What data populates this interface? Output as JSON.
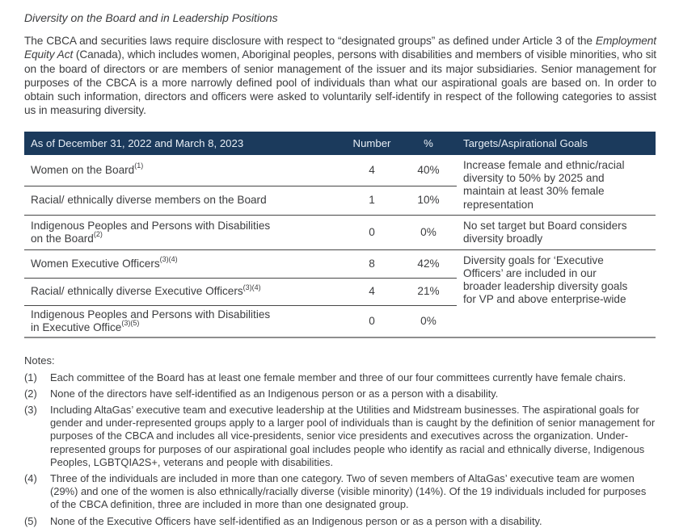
{
  "title": "Diversity on the Board and in Leadership Positions",
  "intro": {
    "part1": "The CBCA and securities laws require disclosure with respect to “designated groups” as defined under Article 3 of the ",
    "italic": "Employment Equity Act",
    "part2": " (Canada), which includes women, Aboriginal peoples, persons with disabilities and members of visible minorities, who sit on the board of directors or are members of senior management of the issuer and its major subsidiaries. Senior management for purposes of the CBCA is a more narrowly defined pool of individuals than what our aspirational goals are based on. In order to obtain such information, directors and officers were asked to voluntarily self-identify in respect of the following categories to assist us in measuring diversity."
  },
  "table": {
    "header": {
      "as_of": "As of December 31, 2022 and March 8, 2023",
      "number": "Number",
      "pct": "%",
      "targets": "Targets/Aspirational Goals"
    },
    "rows": [
      {
        "label": "Women on the Board",
        "sup": "(1)",
        "number": "4",
        "pct": "40%"
      },
      {
        "label": "Racial/ ethnically diverse members on the Board",
        "sup": "",
        "number": "1",
        "pct": "10%"
      },
      {
        "label": "Indigenous Peoples and Persons with Disabilities\non the Board",
        "sup": "(2)",
        "number": "0",
        "pct": "0%"
      },
      {
        "label": "Women Executive Officers",
        "sup": "(3)(4)",
        "number": "8",
        "pct": "42%"
      },
      {
        "label": "Racial/ ethnically diverse Executive Officers",
        "sup": "(3)(4)",
        "number": "4",
        "pct": "21%"
      },
      {
        "label": "Indigenous Peoples and Persons with Disabilities\nin Executive Office",
        "sup": "(3)(5)",
        "number": "0",
        "pct": "0%"
      }
    ],
    "targets": [
      "Increase female and ethnic/racial\ndiversity to 50% by 2025 and\nmaintain at least 30% female\nrepresentation",
      "No set target but Board considers\ndiversity broadly",
      "Diversity goals for ‘Executive\nOfficers’ are included in our\nbroader leadership diversity goals\nfor VP and above enterprise-wide"
    ]
  },
  "notes": {
    "heading": "Notes:",
    "items": [
      {
        "num": "(1)",
        "text": "Each committee of the Board has at least one female member and three of our four committees currently have female chairs."
      },
      {
        "num": "(2)",
        "text": "None of the directors have self-identified as an Indigenous person or as a person with a disability."
      },
      {
        "num": "(3)",
        "text": "Including AltaGas’ executive team and executive leadership at the Utilities and Midstream businesses. The aspirational goals for gender and under-represented groups apply to a larger pool of individuals than is caught by the definition of senior management for purposes of the CBCA and includes all vice-presidents, senior vice presidents and executives across the organization. Under-represented groups for purposes of our aspirational goal includes people who identify as racial and ethnically diverse, Indigenous Peoples, LGBTQIA2S+, veterans and people with disabilities."
      },
      {
        "num": "(4)",
        "text": "Three of the individuals are included in more than one category. Two of seven members of AltaGas’ executive team are women (29%) and one of the women is also ethnically/racially diverse (visible minority) (14%). Of the 19 individuals included for purposes of the CBCA definition, three are included in more than one designated group."
      },
      {
        "num": "(5)",
        "text": "None of the Executive Officers have self-identified as an Indigenous person or as a person with a disability."
      }
    ]
  },
  "colors": {
    "header_bg": "#1b3a5c",
    "header_text": "#e8eff6",
    "body_text": "#3c3d3f",
    "rule_dark": "#474747",
    "rule_bottom": "#8e8e8e"
  }
}
